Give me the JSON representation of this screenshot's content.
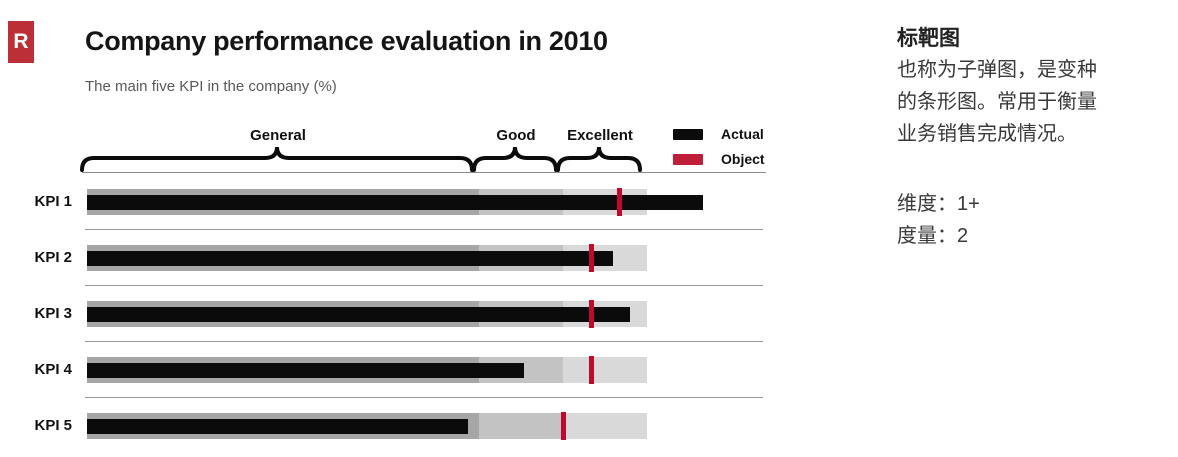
{
  "header": {
    "logo_letter": "R",
    "title": "Company performance evaluation in 2010",
    "subtitle": "The main five KPI in the company (%)"
  },
  "legend": {
    "actual_label": "Actual",
    "object_label": "Object",
    "actual_color": "#0b0b0b",
    "object_color": "#bf1e38"
  },
  "chart_data": {
    "type": "bar",
    "subtype": "bullet",
    "title": "Company performance evaluation in 2010",
    "subtitle": "The main five KPI in the company (%)",
    "categories": [
      "KPI 1",
      "KPI 2",
      "KPI 3",
      "KPI 4",
      "KPI 5"
    ],
    "series": [
      {
        "name": "Actual",
        "values": [
          110,
          94,
          97,
          78,
          68
        ],
        "color": "#0b0b0b"
      },
      {
        "name": "Object",
        "values": [
          95,
          90,
          90,
          90,
          85
        ],
        "color": "#bf0a30"
      }
    ],
    "zones": [
      {
        "label": "General",
        "from": 0,
        "to": 70,
        "color": "#a6a6a6"
      },
      {
        "label": "Good",
        "from": 70,
        "to": 85,
        "color": "#c3c3c3"
      },
      {
        "label": "Excellent",
        "from": 85,
        "to": 100,
        "color": "#d9d9d9"
      }
    ],
    "xlim": [
      0,
      100
    ],
    "unit": "%",
    "legend_position": "top-right",
    "grid": false
  },
  "side_panel": {
    "title": "标靶图",
    "body_lines": [
      "也称为子弹图，是变种",
      "的条形图。常用于衡量",
      "业务销售完成情况。"
    ],
    "dimension_line": "维度：1+",
    "measure_line": "度量：2"
  }
}
